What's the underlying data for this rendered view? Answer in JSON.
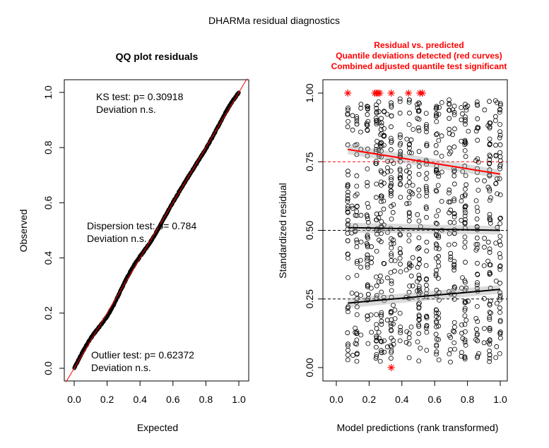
{
  "figure": {
    "title": "DHARMa residual diagnostics"
  },
  "chart_data": [
    {
      "type": "scatter",
      "title": "QQ plot residuals",
      "xlabel": "Expected",
      "ylabel": "Observed",
      "xlim": [
        0,
        1
      ],
      "ylim": [
        0,
        1
      ],
      "xticks": [
        "0.0",
        "0.2",
        "0.4",
        "0.6",
        "0.8",
        "1.0"
      ],
      "yticks": [
        "0.0",
        "0.2",
        "0.4",
        "0.6",
        "0.8",
        "1.0"
      ],
      "annotations": [
        {
          "line1": "KS test: p= 0.30918",
          "line2": "Deviation  n.s."
        },
        {
          "line1": "Dispersion test: p= 0.784",
          "line2": "Deviation  n.s."
        },
        {
          "line1": "Outlier test: p= 0.62372",
          "line2": "Deviation  n.s."
        }
      ],
      "reference_line": {
        "slope": 1,
        "intercept": 0,
        "color": "#ff0000"
      },
      "points": {
        "n": 800,
        "x": [
          0,
          1
        ],
        "y": [
          0,
          1
        ],
        "color": "#000000"
      }
    },
    {
      "type": "scatter",
      "title_lines": [
        "Residual vs. predicted",
        "Quantile deviations detected (red curves)",
        "Combined adjusted quantile test significant"
      ],
      "title_color": "#ff0000",
      "xlabel": "Model predictions (rank transformed)",
      "ylabel": "Standardized residual",
      "xlim": [
        0,
        1
      ],
      "ylim": [
        0,
        1
      ],
      "xticks": [
        "0.0",
        "0.2",
        "0.4",
        "0.6",
        "0.8",
        "1.0"
      ],
      "yticks": [
        "0.00",
        "0.25",
        "0.50",
        "0.75",
        "1.00"
      ],
      "reference_lines": [
        0.25,
        0.5,
        0.75
      ],
      "quantile_curves": [
        {
          "q": 0.25,
          "x": [
            0.07,
            1.0
          ],
          "y": [
            0.235,
            0.285
          ],
          "color": "#000000"
        },
        {
          "q": 0.5,
          "x": [
            0.07,
            1.0
          ],
          "y": [
            0.51,
            0.5
          ],
          "color": "#000000"
        },
        {
          "q": 0.75,
          "x": [
            0.07,
            1.0
          ],
          "y": [
            0.795,
            0.705
          ],
          "color": "#ff0000"
        }
      ],
      "outliers": {
        "x": [
          0.07,
          0.235,
          0.245,
          0.255,
          0.265,
          0.335,
          0.44,
          0.51,
          0.525,
          0.335
        ],
        "y": [
          1,
          1,
          1,
          1,
          1,
          1,
          1,
          1,
          1,
          0
        ],
        "color": "#ff0000"
      },
      "points": {
        "n": 1000,
        "x": [
          0.07,
          1.0
        ],
        "y": [
          0.02,
          0.98
        ],
        "color": "#000000"
      }
    }
  ]
}
